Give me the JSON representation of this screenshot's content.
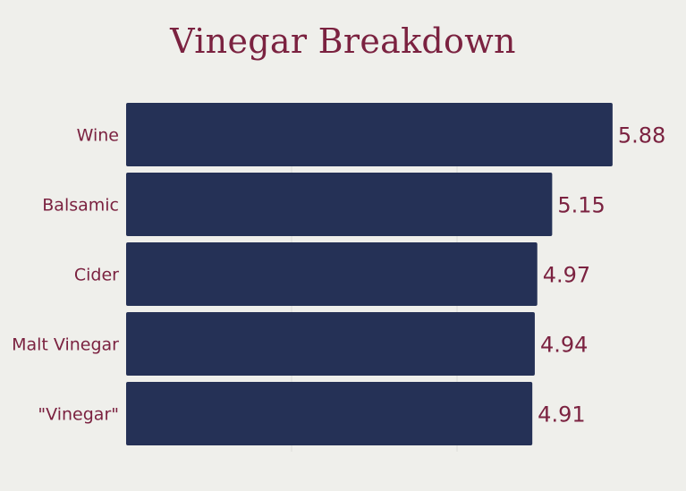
{
  "chart_data": {
    "type": "bar",
    "orientation": "horizontal",
    "title": "Vinegar Breakdown",
    "categories": [
      "Wine",
      "Balsamic",
      "Cider",
      "Malt Vinegar",
      "\"Vinegar\""
    ],
    "values": [
      5.88,
      5.15,
      4.97,
      4.94,
      4.91
    ],
    "data_labels": [
      "5.88",
      "5.15",
      "4.97",
      "4.94",
      "4.91"
    ],
    "xlabel": "",
    "ylabel": "",
    "xlim": [
      0,
      6
    ],
    "grid": true,
    "colors": {
      "bar": "#253156",
      "text": "#7b2240",
      "background": "#efefeb",
      "grid": "#dcdcd8"
    }
  }
}
